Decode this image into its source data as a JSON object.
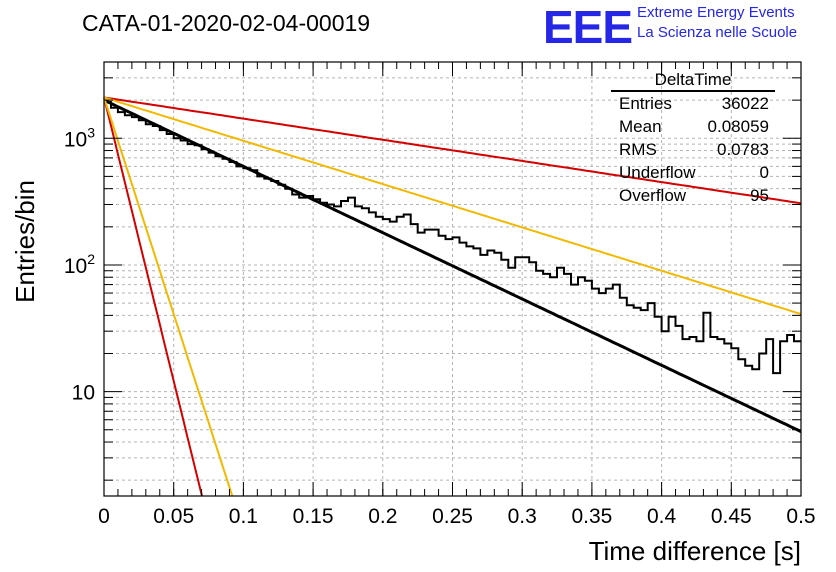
{
  "header": {
    "title": "CATA-01-2020-02-04-00019",
    "logo": "EEE",
    "logo_line1": "Extreme Energy Events",
    "logo_line2": "La Scienza nelle Scuole"
  },
  "stats": {
    "title": "DeltaTime",
    "rows": [
      {
        "label": "Entries",
        "value": "36022"
      },
      {
        "label": "Mean",
        "value": "0.08059"
      },
      {
        "label": "RMS",
        "value": "0.0783"
      },
      {
        "label": "Underflow",
        "value": "0"
      },
      {
        "label": "Overflow",
        "value": "95"
      }
    ]
  },
  "chart_data": {
    "type": "line",
    "xlabel": "Time difference [s]",
    "ylabel": "Entries/bin",
    "xlim": [
      0,
      0.5
    ],
    "ylim": [
      1.5,
      4000
    ],
    "yscale": "log",
    "grid": true,
    "x_ticks": [
      "0",
      "0.05",
      "0.1",
      "0.15",
      "0.2",
      "0.25",
      "0.3",
      "0.35",
      "0.4",
      "0.45",
      "0.5"
    ],
    "y_ticks": [
      {
        "value": 10,
        "label": "10"
      },
      {
        "value": 100,
        "label": "10^2"
      },
      {
        "value": 1000,
        "label": "10^3"
      }
    ],
    "bin_width": 0.005,
    "histogram": {
      "color": "#000000",
      "values": [
        1930,
        1740,
        1610,
        1520,
        1470,
        1390,
        1290,
        1250,
        1160,
        1080,
        1000,
        960,
        900,
        880,
        820,
        770,
        720,
        690,
        650,
        600,
        580,
        560,
        500,
        480,
        460,
        430,
        400,
        360,
        340,
        350,
        330,
        310,
        300,
        290,
        320,
        340,
        290,
        280,
        260,
        240,
        230,
        220,
        240,
        250,
        210,
        180,
        190,
        190,
        170,
        160,
        165,
        150,
        140,
        135,
        120,
        130,
        125,
        110,
        95,
        115,
        115,
        105,
        90,
        85,
        80,
        95,
        85,
        70,
        80,
        75,
        65,
        60,
        65,
        70,
        55,
        48,
        46,
        44,
        50,
        39,
        30,
        39,
        33,
        26,
        27,
        25,
        42,
        27,
        26,
        24,
        22,
        18,
        16,
        15,
        20,
        26,
        14,
        25,
        28,
        25
      ]
    },
    "series": [
      {
        "color": "#000000",
        "values_at": "x",
        "a": 2000,
        "tau": 0.083
      },
      {
        "color": "#d40000",
        "values_at": "x",
        "a": 2100,
        "tau": 0.26
      },
      {
        "color": "#f2b900",
        "values_at": "x",
        "a": 2100,
        "tau": 0.127
      },
      {
        "color": "#d40000",
        "values_at": "x",
        "a": 2100,
        "tau": 0.0097
      },
      {
        "color": "#f2b900",
        "values_at": "x",
        "a": 2100,
        "tau": 0.0127
      }
    ]
  }
}
